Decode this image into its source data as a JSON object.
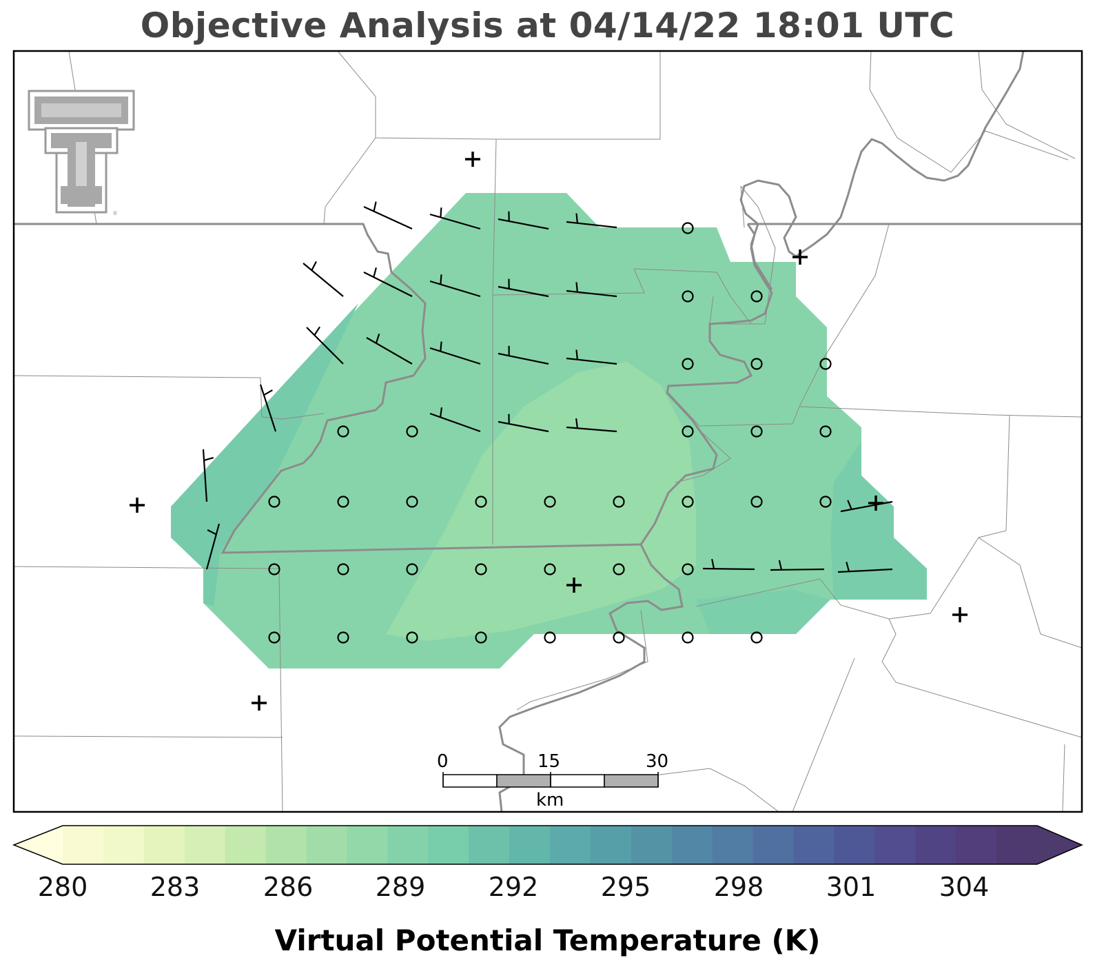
{
  "title": "Objective Analysis at 04/14/22 18:01 UTC",
  "colorbar": {
    "label": "Virtual Potential Temperature (K)",
    "ticks": [
      "280",
      "283",
      "286",
      "289",
      "292",
      "295",
      "298",
      "301",
      "304"
    ],
    "colors": [
      "#fafad2",
      "#f2f9c8",
      "#e5f4bd",
      "#d6efb6",
      "#c4e9af",
      "#b1e2a9",
      "#a2dda9",
      "#92d8a8",
      "#83d2aa",
      "#78cdab",
      "#6dc1ab",
      "#63b6aa",
      "#5cabaa",
      "#569fa8",
      "#5493a6",
      "#5288a5",
      "#517ca3",
      "#5070a1",
      "#4f649d",
      "#4f5897",
      "#514d8e",
      "#514484",
      "#513e7a",
      "#4f3a70"
    ]
  },
  "scale_bar": {
    "labels": [
      "0",
      "15",
      "30"
    ],
    "unit": "km"
  },
  "analysis_fill_colors": {
    "outer": "#88d4aa",
    "middle": "#76cbab",
    "core": "#98dcaa"
  },
  "logo": {
    "name": "texas-tech-double-t-logo"
  }
}
